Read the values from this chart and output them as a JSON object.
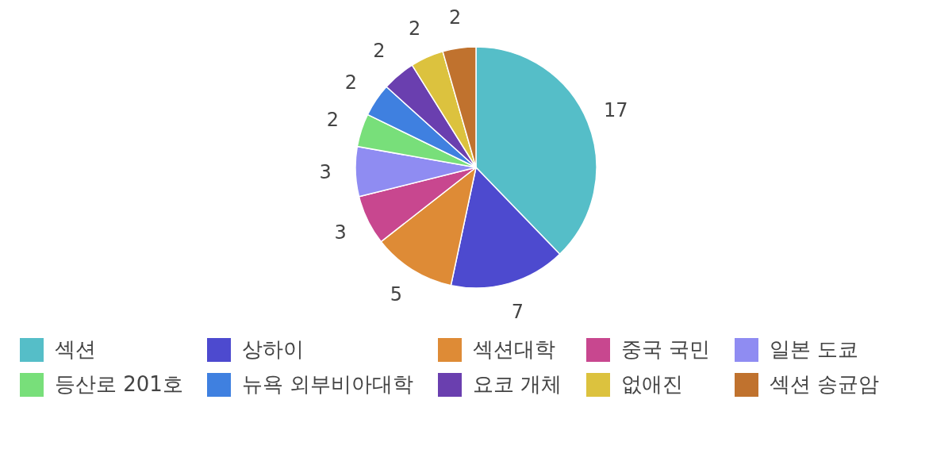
{
  "chart_data": {
    "type": "pie",
    "categories": [
      "섹션",
      "상하이",
      "섹션대학",
      "중국 국민",
      "일본 도쿄",
      "등산로 201호",
      "뉴욕 외부비아대학",
      "요코 개체",
      "없애진",
      "섹션 송균암"
    ],
    "values": [
      17,
      7,
      5,
      3,
      3,
      2,
      2,
      2,
      2,
      2
    ],
    "colors": [
      "#55bec8",
      "#4d4acf",
      "#de8b36",
      "#c8478f",
      "#8f8cf2",
      "#78df7a",
      "#3f80e0",
      "#6a3faf",
      "#dcc23e",
      "#c0722e"
    ],
    "data_labels": true,
    "legend": "bottom"
  }
}
